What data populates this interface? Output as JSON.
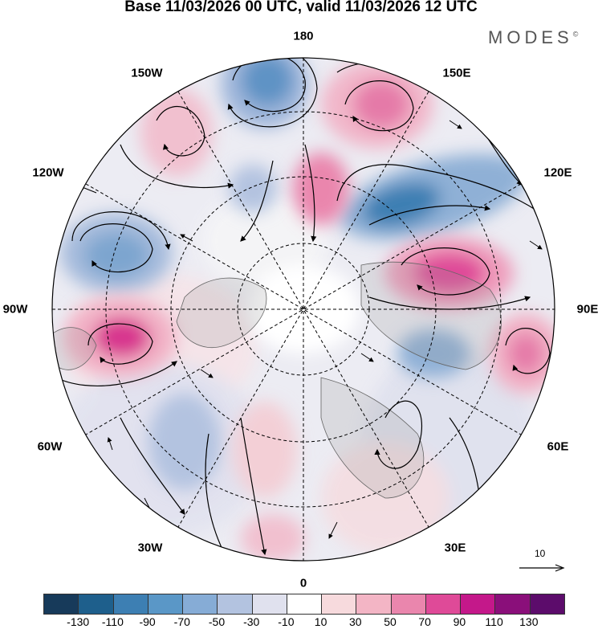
{
  "title": "Base 11/03/2026 00 UTC, valid 11/03/2026 12 UTC",
  "brand": "MODES",
  "brand_mark": "©",
  "longitude_labels": [
    {
      "id": "lon-180",
      "text": "180"
    },
    {
      "id": "lon-150e",
      "text": "150E"
    },
    {
      "id": "lon-120e",
      "text": "120E"
    },
    {
      "id": "lon-90e",
      "text": "90E"
    },
    {
      "id": "lon-60e",
      "text": "60E"
    },
    {
      "id": "lon-30e",
      "text": "30E"
    },
    {
      "id": "lon-0",
      "text": "0"
    },
    {
      "id": "lon-30w",
      "text": "30W"
    },
    {
      "id": "lon-60w",
      "text": "60W"
    },
    {
      "id": "lon-90w",
      "text": "90W"
    },
    {
      "id": "lon-120w",
      "text": "120W"
    },
    {
      "id": "lon-150w",
      "text": "150W"
    }
  ],
  "reference_vector": {
    "label": "10"
  },
  "colorbar": {
    "ticks": [
      "-130",
      "-110",
      "-90",
      "-70",
      "-50",
      "-30",
      "-10",
      "10",
      "30",
      "50",
      "70",
      "90",
      "110",
      "130"
    ],
    "colors": [
      "#173a5a",
      "#1e5f8c",
      "#3d7fb3",
      "#5a97c7",
      "#86acd6",
      "#b3c3e0",
      "#e0e1ee",
      "#ffffff",
      "#f7dadd",
      "#f3b5c5",
      "#ea86ad",
      "#df4a98",
      "#c4188a",
      "#8a0f7a",
      "#5c0c6b"
    ]
  },
  "colors": {
    "background": "#ffffff",
    "land_gray": "#9a9a9a",
    "grid": "#000000"
  }
}
